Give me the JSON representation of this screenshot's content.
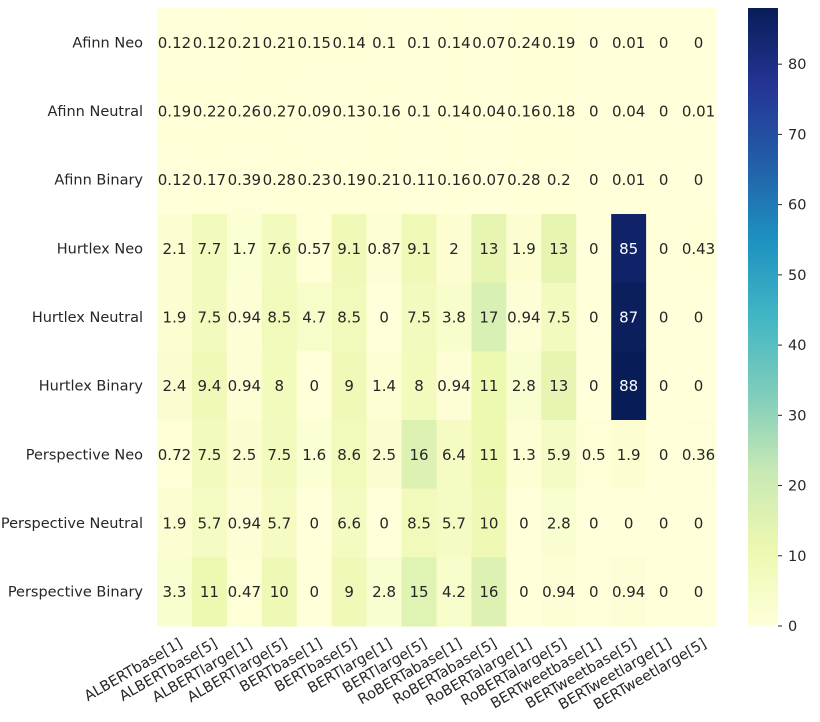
{
  "chart_data": {
    "type": "heatmap",
    "rows": [
      "Afinn Neo",
      "Afinn Neutral",
      "Afinn Binary",
      "Hurtlex Neo",
      "Hurtlex Neutral",
      "Hurtlex Binary",
      "Perspective Neo",
      "Perspective Neutral",
      "Perspective Binary"
    ],
    "columns": [
      "ALBERTbase[1]",
      "ALBERTbase[5]",
      "ALBERTlarge[1]",
      "ALBERTlarge[5]",
      "BERTbase[1]",
      "BERTbase[5]",
      "BERTlarge[1]",
      "BERTlarge[5]",
      "RoBERTabase[1]",
      "RoBERTabase[5]",
      "RoBERTalarge[1]",
      "RoBERTalarge[5]",
      "BERTweetbase[1]",
      "BERTweetbase[5]",
      "BERTweetlarge[1]",
      "BERTweetlarge[5]"
    ],
    "values": [
      [
        0.12,
        0.12,
        0.21,
        0.21,
        0.15,
        0.14,
        0.1,
        0.1,
        0.14,
        0.07,
        0.24,
        0.19,
        0,
        0.01,
        0,
        0
      ],
      [
        0.19,
        0.22,
        0.26,
        0.27,
        0.09,
        0.13,
        0.16,
        0.1,
        0.14,
        0.04,
        0.16,
        0.18,
        0,
        0.04,
        0,
        0.01
      ],
      [
        0.12,
        0.17,
        0.39,
        0.28,
        0.23,
        0.19,
        0.21,
        0.11,
        0.16,
        0.07,
        0.28,
        0.2,
        0,
        0.01,
        0,
        0
      ],
      [
        2.1,
        7.7,
        1.7,
        7.6,
        0.57,
        9.1,
        0.87,
        9.1,
        2,
        13,
        1.9,
        13,
        0,
        85,
        0,
        0.43
      ],
      [
        1.9,
        7.5,
        0.94,
        8.5,
        4.7,
        8.5,
        0,
        7.5,
        3.8,
        17,
        0.94,
        7.5,
        0,
        87,
        0,
        0
      ],
      [
        2.4,
        9.4,
        0.94,
        8,
        0,
        9,
        1.4,
        8,
        0.94,
        11,
        2.8,
        13,
        0,
        88,
        0,
        0
      ],
      [
        0.72,
        7.5,
        2.5,
        7.5,
        1.6,
        8.6,
        2.5,
        16,
        6.4,
        11,
        1.3,
        5.9,
        0.5,
        1.9,
        0,
        0.36
      ],
      [
        1.9,
        5.7,
        0.94,
        5.7,
        0,
        6.6,
        0,
        8.5,
        5.7,
        10,
        0,
        2.8,
        0,
        0,
        0,
        0
      ],
      [
        3.3,
        11,
        0.47,
        10,
        0,
        9,
        2.8,
        15,
        4.2,
        16,
        0,
        0.94,
        0,
        0.94,
        0,
        0
      ]
    ],
    "colorbar": {
      "colormap": "YlGnBu",
      "min": 0,
      "max": 88,
      "ticks": [
        0,
        10,
        20,
        30,
        40,
        50,
        60,
        70,
        80
      ]
    },
    "title": "",
    "xlabel": "",
    "ylabel": ""
  }
}
